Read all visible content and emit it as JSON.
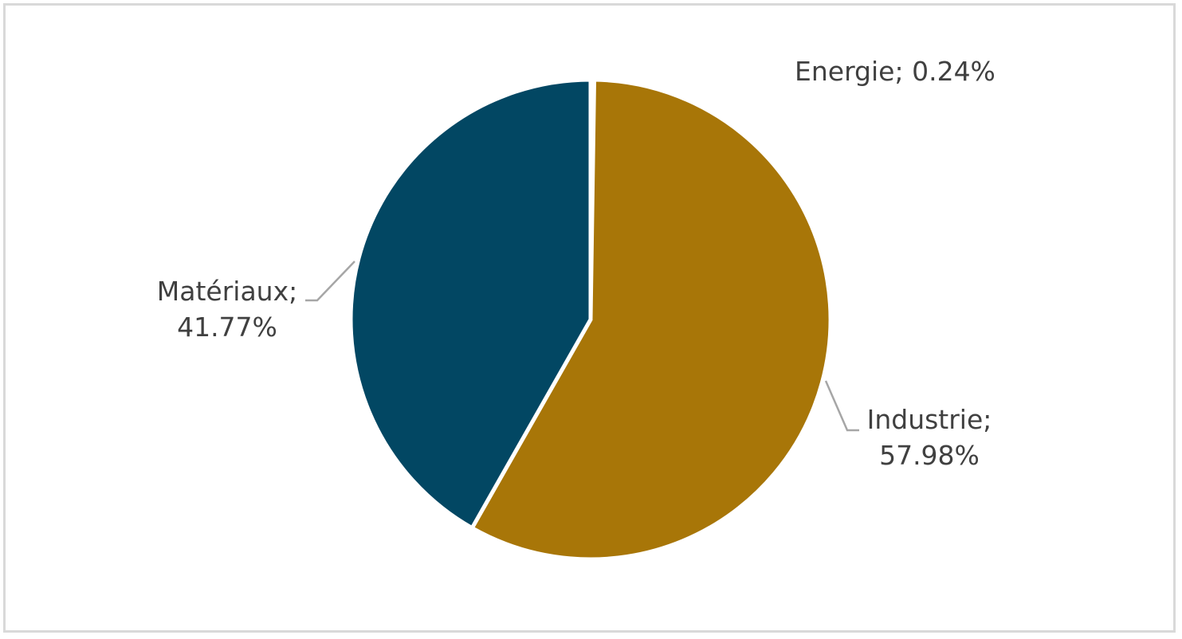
{
  "chart_data": {
    "type": "pie",
    "title": "",
    "slices": [
      {
        "name": "Energie",
        "value": 0.24,
        "label": "Energie; 0.24%",
        "label_lines": [
          "Energie; 0.24%"
        ],
        "color": "#a87608"
      },
      {
        "name": "Industrie",
        "value": 57.98,
        "label": "Industrie; 57.98%",
        "label_lines": [
          "Industrie;",
          "57.98%"
        ],
        "color": "#a87608"
      },
      {
        "name": "Matériaux",
        "value": 41.77,
        "label": "Matériaux; 41.77%",
        "label_lines": [
          "Matériaux;",
          "41.77%"
        ],
        "color": "#024763"
      }
    ],
    "slice_border_color": "#ffffff",
    "leader_line_color": "#a6a6a6",
    "legend": "none"
  }
}
